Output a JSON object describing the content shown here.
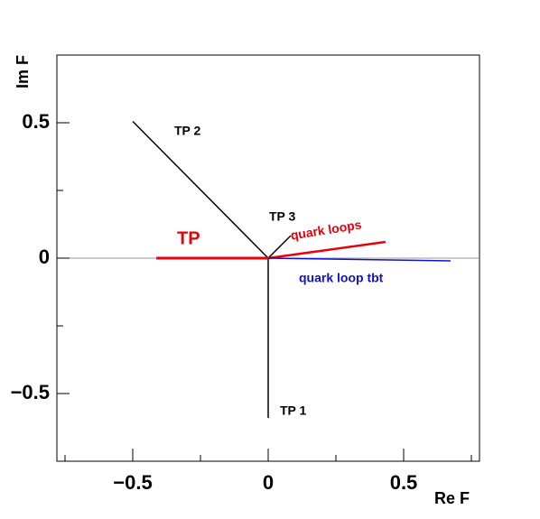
{
  "chart_data": {
    "type": "line",
    "x_label": "Re F",
    "y_label": "Im F",
    "xlim": [
      -0.78,
      0.78
    ],
    "ylim": [
      -0.75,
      0.75
    ],
    "xticks": [
      {
        "value": -0.5,
        "label": "−0.5"
      },
      0,
      0.5
    ],
    "yticks": [
      {
        "value": -0.5,
        "label": "−0.5"
      },
      0,
      0.5
    ],
    "xminor_ticks": [
      -0.75,
      -0.25,
      0.25,
      0.75
    ],
    "yminor_ticks": [
      -0.75,
      -0.25,
      0.25,
      0.75
    ],
    "zero_line": true,
    "series": [
      {
        "name": "TP 2",
        "color": "#000000",
        "x": [
          0,
          -0.5
        ],
        "values": [
          0,
          0.505
        ]
      },
      {
        "name": "TP 3",
        "color": "#000000",
        "x": [
          0,
          0.083
        ],
        "values": [
          0,
          0.083
        ]
      },
      {
        "name": "TP 1",
        "color": "#000000",
        "x": [
          0,
          0
        ],
        "values": [
          0,
          -0.59
        ]
      },
      {
        "name": "TP",
        "color": "#e8000b",
        "x": [
          0,
          -0.413
        ],
        "values": [
          0,
          0
        ]
      },
      {
        "name": "quark loops",
        "color": "#e8000b",
        "x": [
          0,
          0.433
        ],
        "values": [
          0,
          0.06
        ]
      },
      {
        "name": "quark loop tbt",
        "color": "#1010d0",
        "x": [
          0,
          0.673
        ],
        "values": [
          0,
          -0.01
        ]
      }
    ]
  }
}
